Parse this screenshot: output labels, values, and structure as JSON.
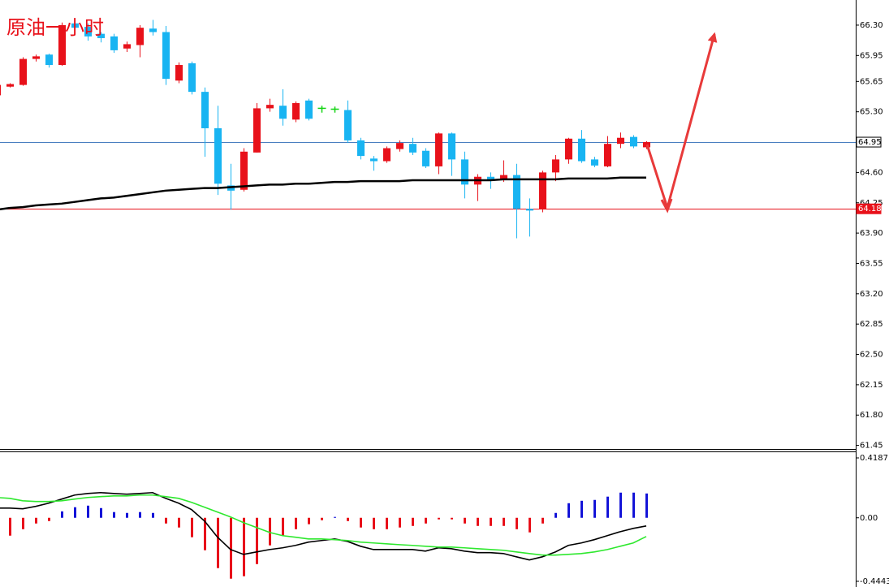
{
  "chart_data": [
    {
      "type": "candlestick",
      "title": "原油一小时",
      "open": [
        65.49,
        65.59,
        65.61,
        65.91,
        65.96,
        65.84,
        66.32,
        66.28,
        66.2,
        66.17,
        66.03,
        66.07,
        66.26,
        66.22,
        65.66,
        65.86,
        65.53,
        65.11,
        64.45,
        64.4,
        64.83,
        65.34,
        65.37,
        65.21,
        65.43,
        65.34,
        65.33,
        65.32,
        64.97,
        64.76,
        64.73,
        64.87,
        64.93,
        64.85,
        64.67,
        65.05,
        64.75,
        64.46,
        64.55,
        64.52,
        64.57,
        64.18,
        64.18,
        64.6,
        64.75,
        64.99,
        64.75,
        64.67,
        64.93,
        65.01,
        64.89
      ],
      "high": [
        65.63,
        65.63,
        65.93,
        65.96,
        65.97,
        66.33,
        66.35,
        66.32,
        66.22,
        66.2,
        66.11,
        66.3,
        66.36,
        66.29,
        65.87,
        65.88,
        65.58,
        65.37,
        64.7,
        64.88,
        65.4,
        65.45,
        65.56,
        65.42,
        65.45,
        65.37,
        65.36,
        65.43,
        65.0,
        64.79,
        64.9,
        64.97,
        65.0,
        64.88,
        65.06,
        65.06,
        64.84,
        64.58,
        64.6,
        64.74,
        64.7,
        64.3,
        64.62,
        64.8,
        65.0,
        65.09,
        64.78,
        65.02,
        65.06,
        65.03,
        64.96
      ],
      "low": [
        65.47,
        65.58,
        65.6,
        65.88,
        65.81,
        65.83,
        66.22,
        66.12,
        66.1,
        65.98,
        65.99,
        65.93,
        66.18,
        65.61,
        65.63,
        65.5,
        64.78,
        64.34,
        64.17,
        64.38,
        64.83,
        65.3,
        65.14,
        65.18,
        65.2,
        65.29,
        65.29,
        64.94,
        64.75,
        64.62,
        64.71,
        64.84,
        64.8,
        64.65,
        64.58,
        64.56,
        64.3,
        64.27,
        64.41,
        64.49,
        63.84,
        63.86,
        64.14,
        64.5,
        64.7,
        64.71,
        64.66,
        64.66,
        64.88,
        64.88,
        64.87
      ],
      "close": [
        65.61,
        65.62,
        65.91,
        65.94,
        65.84,
        66.3,
        66.27,
        66.17,
        66.15,
        66.01,
        66.08,
        66.27,
        66.22,
        65.68,
        65.84,
        65.53,
        65.11,
        64.47,
        64.39,
        64.84,
        65.34,
        65.38,
        65.22,
        65.4,
        65.22,
        65.34,
        65.33,
        64.97,
        64.79,
        64.73,
        64.88,
        64.94,
        64.83,
        64.67,
        65.05,
        64.75,
        64.46,
        64.55,
        64.52,
        64.57,
        64.18,
        64.16,
        64.6,
        64.75,
        64.99,
        64.73,
        64.68,
        64.93,
        65.0,
        64.9,
        64.95
      ],
      "up_color": "#e8111a",
      "down_color": "#18b4f2",
      "doji_color": "#12d412",
      "moving_average": {
        "color": "#000000",
        "values": [
          64.17,
          64.19,
          64.2,
          64.22,
          64.23,
          64.24,
          64.26,
          64.28,
          64.3,
          64.31,
          64.33,
          64.35,
          64.37,
          64.39,
          64.4,
          64.41,
          64.42,
          64.42,
          64.43,
          64.44,
          64.45,
          64.46,
          64.46,
          64.47,
          64.47,
          64.48,
          64.49,
          64.49,
          64.5,
          64.5,
          64.5,
          64.5,
          64.51,
          64.51,
          64.51,
          64.51,
          64.51,
          64.51,
          64.51,
          64.52,
          64.52,
          64.52,
          64.52,
          64.52,
          64.53,
          64.53,
          64.53,
          64.53,
          64.54,
          64.54,
          64.54
        ]
      },
      "price_lines": [
        {
          "value": 64.95,
          "color": "#4a7fc0"
        },
        {
          "value": 64.18,
          "color": "#e8111a"
        }
      ],
      "ylim": [
        61.39,
        66.59
      ],
      "yticks": [
        {
          "value": 66.3,
          "label": "66.30"
        },
        65.95,
        65.65,
        {
          "value": 65.3,
          "label": "65.30"
        },
        {
          "value": 64.6,
          "label": "64.60"
        },
        64.25,
        {
          "value": 63.9,
          "label": "63.90"
        },
        63.55,
        {
          "value": 63.2,
          "label": "63.20"
        },
        62.85,
        {
          "value": 62.5,
          "label": "62.50"
        },
        62.15,
        {
          "value": 61.8,
          "label": "61.80"
        },
        61.45
      ]
    },
    {
      "type": "macd",
      "histogram": {
        "up_color": "#1414d8",
        "down_color": "#e8111a",
        "values": [
          null,
          -0.125,
          -0.08,
          -0.04,
          -0.023,
          0.045,
          0.074,
          0.085,
          0.068,
          0.04,
          0.034,
          0.04,
          0.034,
          -0.04,
          -0.068,
          -0.136,
          -0.227,
          -0.352,
          -0.426,
          -0.409,
          -0.324,
          -0.193,
          -0.125,
          -0.08,
          -0.045,
          -0.017,
          0.006,
          -0.023,
          -0.068,
          -0.08,
          -0.08,
          -0.068,
          -0.057,
          -0.04,
          -0.011,
          -0.011,
          -0.04,
          -0.057,
          -0.057,
          -0.057,
          -0.08,
          -0.102,
          -0.04,
          0.034,
          0.102,
          0.119,
          0.125,
          0.148,
          0.176,
          0.176,
          0.17
        ]
      },
      "series": [
        {
          "color": "#000000",
          "values": [
            0.068,
            0.068,
            0.063,
            0.08,
            0.102,
            0.131,
            0.159,
            0.17,
            0.176,
            0.17,
            0.165,
            0.17,
            0.176,
            0.136,
            0.102,
            0.057,
            -0.023,
            -0.136,
            -0.222,
            -0.256,
            -0.239,
            -0.222,
            -0.21,
            -0.193,
            -0.17,
            -0.159,
            -0.148,
            -0.165,
            -0.199,
            -0.222,
            -0.222,
            -0.222,
            -0.222,
            -0.233,
            -0.21,
            -0.216,
            -0.233,
            -0.244,
            -0.244,
            -0.25,
            -0.273,
            -0.295,
            -0.273,
            -0.239,
            -0.193,
            -0.176,
            -0.153,
            -0.125,
            -0.097,
            -0.074,
            -0.057
          ]
        },
        {
          "color": "#2ee82e",
          "values": [
            0.142,
            0.136,
            0.119,
            0.114,
            0.114,
            0.119,
            0.131,
            0.142,
            0.148,
            0.153,
            0.153,
            0.159,
            0.159,
            0.148,
            0.136,
            0.108,
            0.074,
            0.04,
            0.006,
            -0.034,
            -0.068,
            -0.102,
            -0.125,
            -0.136,
            -0.148,
            -0.148,
            -0.153,
            -0.159,
            -0.17,
            -0.176,
            -0.182,
            -0.188,
            -0.193,
            -0.199,
            -0.205,
            -0.205,
            -0.21,
            -0.216,
            -0.222,
            -0.227,
            -0.239,
            -0.25,
            -0.261,
            -0.261,
            -0.256,
            -0.25,
            -0.239,
            -0.222,
            -0.199,
            -0.176,
            -0.131
          ]
        }
      ],
      "ylim": [
        -0.484,
        0.4585
      ],
      "yticks": [
        0.4187,
        {
          "value": 0,
          "label": "0.00"
        },
        -0.4443
      ]
    }
  ]
}
